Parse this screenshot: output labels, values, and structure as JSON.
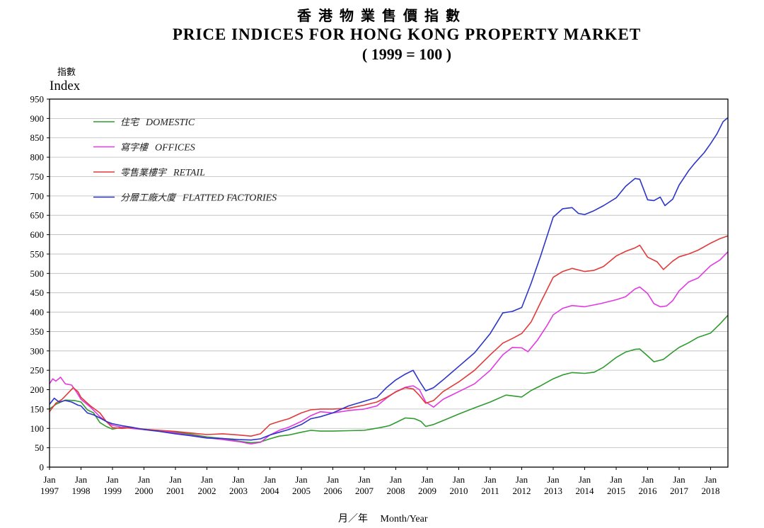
{
  "chart_data": {
    "type": "line",
    "title_zh": "香港物業售價指數",
    "title": "PRICE INDICES FOR HONG KONG PROPERTY MARKET",
    "subtitle": "( 1999 = 100 )",
    "ylabel_zh": "指數",
    "ylabel": "Index",
    "xlabel_zh": "月／年",
    "xlabel": "Month/Year",
    "ylim": [
      0,
      950
    ],
    "yticks": [
      0,
      50,
      100,
      150,
      200,
      250,
      300,
      350,
      400,
      450,
      500,
      550,
      600,
      650,
      700,
      750,
      800,
      850,
      900,
      950
    ],
    "xlim": [
      1997.0,
      2018.55
    ],
    "xticks": [
      {
        "month": "Jan",
        "year": "1997"
      },
      {
        "month": "Jan",
        "year": "1998"
      },
      {
        "month": "Jan",
        "year": "1999"
      },
      {
        "month": "Jan",
        "year": "2000"
      },
      {
        "month": "Jan",
        "year": "2001"
      },
      {
        "month": "Jan",
        "year": "2002"
      },
      {
        "month": "Jan",
        "year": "2003"
      },
      {
        "month": "Jan",
        "year": "2004"
      },
      {
        "month": "Jan",
        "year": "2005"
      },
      {
        "month": "Jan",
        "year": "2006"
      },
      {
        "month": "Jan",
        "year": "2007"
      },
      {
        "month": "Jan",
        "year": "2008"
      },
      {
        "month": "Jan",
        "year": "2009"
      },
      {
        "month": "Jan",
        "year": "2010"
      },
      {
        "month": "Jan",
        "year": "2011"
      },
      {
        "month": "Jan",
        "year": "2012"
      },
      {
        "month": "Jan",
        "year": "2013"
      },
      {
        "month": "Jan",
        "year": "2014"
      },
      {
        "month": "Jan",
        "year": "2015"
      },
      {
        "month": "Jan",
        "year": "2016"
      },
      {
        "month": "Jan",
        "year": "2017"
      },
      {
        "month": "Jan",
        "year": "2018"
      }
    ],
    "grid": true,
    "legend_position": "top-left",
    "series": [
      {
        "name_zh": "住宅",
        "name": "DOMESTIC",
        "color": "#2e9b2e",
        "points": [
          [
            1997.0,
            150
          ],
          [
            1997.2,
            162
          ],
          [
            1997.5,
            173
          ],
          [
            1997.8,
            172
          ],
          [
            1998.0,
            168
          ],
          [
            1998.2,
            148
          ],
          [
            1998.4,
            140
          ],
          [
            1998.6,
            115
          ],
          [
            1998.8,
            105
          ],
          [
            1999.0,
            98
          ],
          [
            1999.3,
            103
          ],
          [
            1999.6,
            101
          ],
          [
            2000.0,
            98
          ],
          [
            2000.5,
            94
          ],
          [
            2001.0,
            90
          ],
          [
            2001.5,
            85
          ],
          [
            2002.0,
            78
          ],
          [
            2002.5,
            74
          ],
          [
            2003.0,
            67
          ],
          [
            2003.4,
            63
          ],
          [
            2003.7,
            65
          ],
          [
            2004.0,
            73
          ],
          [
            2004.3,
            80
          ],
          [
            2004.6,
            83
          ],
          [
            2005.0,
            90
          ],
          [
            2005.3,
            95
          ],
          [
            2005.6,
            93
          ],
          [
            2006.0,
            93
          ],
          [
            2006.5,
            94
          ],
          [
            2007.0,
            95
          ],
          [
            2007.5,
            102
          ],
          [
            2007.8,
            107
          ],
          [
            2008.0,
            115
          ],
          [
            2008.3,
            127
          ],
          [
            2008.6,
            125
          ],
          [
            2008.8,
            118
          ],
          [
            2008.95,
            105
          ],
          [
            2009.2,
            110
          ],
          [
            2009.5,
            120
          ],
          [
            2010.0,
            137
          ],
          [
            2010.5,
            153
          ],
          [
            2011.0,
            168
          ],
          [
            2011.5,
            186
          ],
          [
            2012.0,
            181
          ],
          [
            2012.3,
            198
          ],
          [
            2012.6,
            210
          ],
          [
            2013.0,
            228
          ],
          [
            2013.3,
            238
          ],
          [
            2013.6,
            244
          ],
          [
            2014.0,
            242
          ],
          [
            2014.3,
            245
          ],
          [
            2014.6,
            258
          ],
          [
            2015.0,
            283
          ],
          [
            2015.3,
            297
          ],
          [
            2015.6,
            304
          ],
          [
            2015.75,
            305
          ],
          [
            2016.0,
            287
          ],
          [
            2016.2,
            272
          ],
          [
            2016.5,
            278
          ],
          [
            2016.8,
            297
          ],
          [
            2017.0,
            309
          ],
          [
            2017.3,
            321
          ],
          [
            2017.6,
            335
          ],
          [
            2018.0,
            346
          ],
          [
            2018.3,
            370
          ],
          [
            2018.55,
            392
          ]
        ]
      },
      {
        "name_zh": "寫字樓",
        "name": "OFFICES",
        "color": "#e13ae1",
        "points": [
          [
            1997.0,
            215
          ],
          [
            1997.1,
            228
          ],
          [
            1997.2,
            222
          ],
          [
            1997.35,
            232
          ],
          [
            1997.5,
            215
          ],
          [
            1997.7,
            212
          ],
          [
            1997.85,
            195
          ],
          [
            1998.0,
            175
          ],
          [
            1998.3,
            155
          ],
          [
            1998.6,
            130
          ],
          [
            1998.8,
            118
          ],
          [
            1999.0,
            108
          ],
          [
            1999.3,
            103
          ],
          [
            1999.6,
            100
          ],
          [
            2000.0,
            97
          ],
          [
            2000.5,
            94
          ],
          [
            2001.0,
            88
          ],
          [
            2001.5,
            82
          ],
          [
            2002.0,
            76
          ],
          [
            2002.5,
            71
          ],
          [
            2003.0,
            66
          ],
          [
            2003.4,
            60
          ],
          [
            2003.7,
            64
          ],
          [
            2004.0,
            83
          ],
          [
            2004.3,
            95
          ],
          [
            2004.6,
            103
          ],
          [
            2005.0,
            118
          ],
          [
            2005.3,
            133
          ],
          [
            2005.6,
            143
          ],
          [
            2006.0,
            140
          ],
          [
            2006.5,
            146
          ],
          [
            2007.0,
            150
          ],
          [
            2007.4,
            158
          ],
          [
            2007.7,
            178
          ],
          [
            2008.0,
            195
          ],
          [
            2008.3,
            206
          ],
          [
            2008.55,
            210
          ],
          [
            2008.75,
            200
          ],
          [
            2008.95,
            168
          ],
          [
            2009.2,
            155
          ],
          [
            2009.5,
            175
          ],
          [
            2010.0,
            195
          ],
          [
            2010.5,
            215
          ],
          [
            2011.0,
            250
          ],
          [
            2011.4,
            290
          ],
          [
            2011.7,
            309
          ],
          [
            2012.0,
            308
          ],
          [
            2012.2,
            298
          ],
          [
            2012.5,
            328
          ],
          [
            2012.8,
            365
          ],
          [
            2013.0,
            393
          ],
          [
            2013.3,
            410
          ],
          [
            2013.6,
            417
          ],
          [
            2014.0,
            414
          ],
          [
            2014.5,
            422
          ],
          [
            2015.0,
            432
          ],
          [
            2015.3,
            440
          ],
          [
            2015.6,
            460
          ],
          [
            2015.75,
            465
          ],
          [
            2016.0,
            448
          ],
          [
            2016.2,
            422
          ],
          [
            2016.4,
            414
          ],
          [
            2016.6,
            416
          ],
          [
            2016.8,
            430
          ],
          [
            2017.0,
            455
          ],
          [
            2017.3,
            478
          ],
          [
            2017.6,
            488
          ],
          [
            2018.0,
            520
          ],
          [
            2018.3,
            535
          ],
          [
            2018.55,
            556
          ]
        ]
      },
      {
        "name_zh": "零售業樓宇",
        "name": "RETAIL",
        "color": "#e23a3a",
        "points": [
          [
            1997.0,
            143
          ],
          [
            1997.2,
            165
          ],
          [
            1997.4,
            175
          ],
          [
            1997.6,
            192
          ],
          [
            1997.75,
            205
          ],
          [
            1997.9,
            195
          ],
          [
            1998.0,
            180
          ],
          [
            1998.3,
            158
          ],
          [
            1998.6,
            140
          ],
          [
            1998.8,
            118
          ],
          [
            1999.0,
            102
          ],
          [
            1999.3,
            100
          ],
          [
            1999.6,
            102
          ],
          [
            2000.0,
            98
          ],
          [
            2000.5,
            95
          ],
          [
            2001.0,
            92
          ],
          [
            2001.5,
            88
          ],
          [
            2002.0,
            84
          ],
          [
            2002.5,
            86
          ],
          [
            2003.0,
            83
          ],
          [
            2003.4,
            80
          ],
          [
            2003.7,
            86
          ],
          [
            2004.0,
            110
          ],
          [
            2004.3,
            118
          ],
          [
            2004.6,
            125
          ],
          [
            2005.0,
            140
          ],
          [
            2005.3,
            148
          ],
          [
            2005.6,
            150
          ],
          [
            2006.0,
            150
          ],
          [
            2006.5,
            152
          ],
          [
            2007.0,
            160
          ],
          [
            2007.4,
            168
          ],
          [
            2007.7,
            180
          ],
          [
            2008.0,
            194
          ],
          [
            2008.3,
            205
          ],
          [
            2008.55,
            202
          ],
          [
            2008.75,
            185
          ],
          [
            2008.95,
            165
          ],
          [
            2009.2,
            172
          ],
          [
            2009.5,
            195
          ],
          [
            2010.0,
            220
          ],
          [
            2010.5,
            250
          ],
          [
            2011.0,
            290
          ],
          [
            2011.4,
            320
          ],
          [
            2011.7,
            332
          ],
          [
            2012.0,
            345
          ],
          [
            2012.3,
            375
          ],
          [
            2012.6,
            425
          ],
          [
            2013.0,
            490
          ],
          [
            2013.3,
            505
          ],
          [
            2013.6,
            513
          ],
          [
            2014.0,
            505
          ],
          [
            2014.3,
            508
          ],
          [
            2014.6,
            518
          ],
          [
            2015.0,
            545
          ],
          [
            2015.3,
            557
          ],
          [
            2015.6,
            566
          ],
          [
            2015.75,
            573
          ],
          [
            2016.0,
            542
          ],
          [
            2016.3,
            530
          ],
          [
            2016.5,
            510
          ],
          [
            2016.8,
            532
          ],
          [
            2017.0,
            543
          ],
          [
            2017.3,
            550
          ],
          [
            2017.6,
            560
          ],
          [
            2018.0,
            578
          ],
          [
            2018.3,
            590
          ],
          [
            2018.55,
            597
          ]
        ]
      },
      {
        "name_zh": "分層工廠大廈",
        "name": "FLATTED FACTORIES",
        "color": "#2c35c8",
        "points": [
          [
            1997.0,
            162
          ],
          [
            1997.15,
            178
          ],
          [
            1997.3,
            168
          ],
          [
            1997.5,
            172
          ],
          [
            1997.7,
            168
          ],
          [
            1997.9,
            160
          ],
          [
            1998.0,
            158
          ],
          [
            1998.2,
            140
          ],
          [
            1998.4,
            135
          ],
          [
            1998.6,
            127
          ],
          [
            1998.8,
            118
          ],
          [
            1999.0,
            112
          ],
          [
            1999.3,
            107
          ],
          [
            1999.6,
            103
          ],
          [
            2000.0,
            97
          ],
          [
            2000.5,
            92
          ],
          [
            2001.0,
            86
          ],
          [
            2001.5,
            81
          ],
          [
            2002.0,
            75
          ],
          [
            2002.5,
            74
          ],
          [
            2003.0,
            71
          ],
          [
            2003.4,
            70
          ],
          [
            2003.7,
            73
          ],
          [
            2004.0,
            83
          ],
          [
            2004.3,
            90
          ],
          [
            2004.6,
            97
          ],
          [
            2005.0,
            110
          ],
          [
            2005.3,
            125
          ],
          [
            2005.6,
            130
          ],
          [
            2006.0,
            140
          ],
          [
            2006.5,
            158
          ],
          [
            2007.0,
            170
          ],
          [
            2007.4,
            180
          ],
          [
            2007.7,
            205
          ],
          [
            2008.0,
            225
          ],
          [
            2008.3,
            240
          ],
          [
            2008.55,
            250
          ],
          [
            2008.75,
            222
          ],
          [
            2008.95,
            197
          ],
          [
            2009.2,
            205
          ],
          [
            2009.5,
            225
          ],
          [
            2010.0,
            260
          ],
          [
            2010.5,
            295
          ],
          [
            2011.0,
            345
          ],
          [
            2011.4,
            398
          ],
          [
            2011.7,
            402
          ],
          [
            2012.0,
            412
          ],
          [
            2012.3,
            475
          ],
          [
            2012.6,
            545
          ],
          [
            2013.0,
            645
          ],
          [
            2013.3,
            667
          ],
          [
            2013.6,
            670
          ],
          [
            2013.8,
            655
          ],
          [
            2014.0,
            652
          ],
          [
            2014.3,
            662
          ],
          [
            2014.6,
            675
          ],
          [
            2015.0,
            695
          ],
          [
            2015.3,
            725
          ],
          [
            2015.6,
            745
          ],
          [
            2015.75,
            743
          ],
          [
            2016.0,
            690
          ],
          [
            2016.2,
            688
          ],
          [
            2016.4,
            697
          ],
          [
            2016.55,
            675
          ],
          [
            2016.8,
            692
          ],
          [
            2017.0,
            728
          ],
          [
            2017.3,
            765
          ],
          [
            2017.5,
            785
          ],
          [
            2017.8,
            812
          ],
          [
            2018.0,
            835
          ],
          [
            2018.2,
            860
          ],
          [
            2018.4,
            892
          ],
          [
            2018.55,
            902
          ]
        ]
      }
    ]
  }
}
